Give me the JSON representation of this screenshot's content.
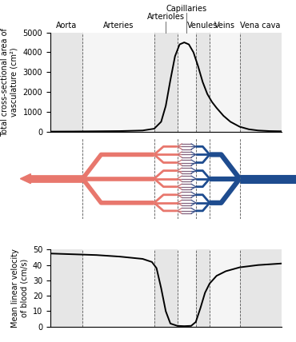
{
  "regions": {
    "labels": [
      "Aorta",
      "Arteries",
      "Arterioles",
      "Capillaries",
      "Venules",
      "Veins",
      "Vena cava"
    ],
    "boundaries": [
      14,
      45,
      55,
      63,
      69,
      82
    ]
  },
  "chart_data": [
    {
      "type": "line",
      "ylabel": "Total cross-sectional area of vasculature (cm²)",
      "x": [
        0,
        10,
        20,
        30,
        40,
        45,
        48,
        50,
        52,
        54,
        56,
        58,
        60,
        62,
        64,
        66,
        68,
        70,
        72,
        75,
        78,
        82,
        86,
        90,
        95,
        100
      ],
      "values": [
        5,
        10,
        20,
        30,
        60,
        150,
        500,
        1300,
        2600,
        3800,
        4400,
        4500,
        4400,
        4000,
        3300,
        2500,
        1900,
        1500,
        1200,
        800,
        500,
        250,
        120,
        60,
        30,
        20
      ],
      "color": "#000000",
      "xlim": [
        0,
        100
      ],
      "ylim": [
        0,
        5000
      ],
      "yticks": [
        0,
        1000,
        2000,
        3000,
        4000,
        5000
      ],
      "tick_labels": "y"
    },
    {
      "type": "line",
      "ylabel": "Mean linear velocity of blood (cm/s)",
      "x": [
        0,
        10,
        20,
        30,
        40,
        44,
        46,
        48,
        50,
        52,
        55,
        58,
        61,
        63,
        65,
        67,
        69,
        72,
        76,
        82,
        90,
        100
      ],
      "values": [
        47.5,
        47,
        46.5,
        45.5,
        44,
        42,
        38,
        25,
        10,
        2,
        0.5,
        0.3,
        0.5,
        3,
        12,
        22,
        28,
        33,
        36,
        38.5,
        40,
        41
      ],
      "color": "#000000",
      "xlim": [
        0,
        100
      ],
      "ylim": [
        0,
        50
      ],
      "yticks": [
        0,
        10,
        20,
        30,
        40,
        50
      ],
      "tick_labels": "y"
    }
  ]
}
